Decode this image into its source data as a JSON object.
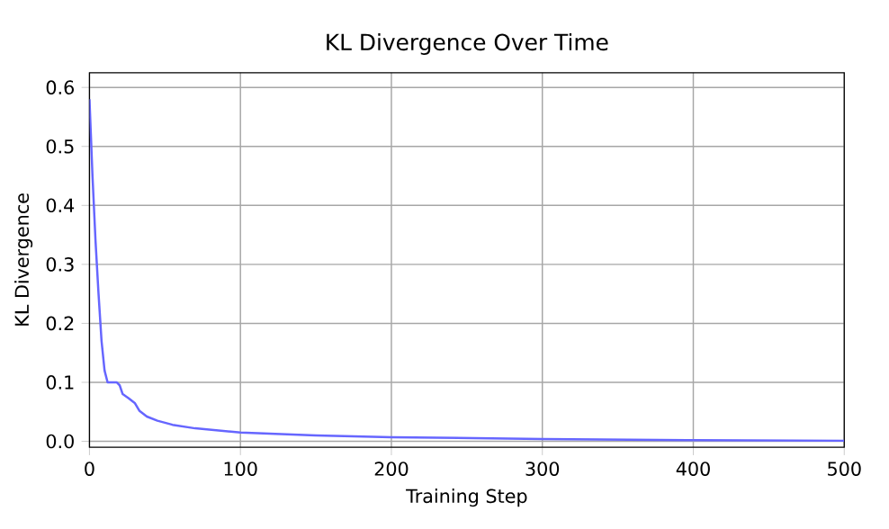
{
  "chart_data": {
    "type": "line",
    "title": "KL Divergence Over Time",
    "xlabel": "Training Step",
    "ylabel": "KL Divergence",
    "x": [
      0,
      2,
      4,
      6,
      8,
      10,
      12,
      15,
      18,
      20,
      22,
      26,
      30,
      33,
      38,
      45,
      55,
      70,
      100,
      150,
      200,
      300,
      400,
      500
    ],
    "series": [
      {
        "color": "#6666ff",
        "values": [
          0.58,
          0.45,
          0.34,
          0.25,
          0.17,
          0.12,
          0.1,
          0.1,
          0.1,
          0.095,
          0.08,
          0.073,
          0.065,
          0.052,
          0.042,
          0.035,
          0.028,
          0.022,
          0.015,
          0.01,
          0.007,
          0.004,
          0.002,
          0.001
        ]
      }
    ],
    "xlim": [
      0,
      500
    ],
    "xticks": [
      0,
      100,
      200,
      300,
      400,
      500
    ],
    "ylim": [
      -0.01,
      0.625
    ],
    "yticks": [
      {
        "value": 0,
        "label": "0.0"
      },
      0.1,
      0.2,
      0.3,
      0.4,
      0.5,
      0.6
    ],
    "grid": true
  }
}
